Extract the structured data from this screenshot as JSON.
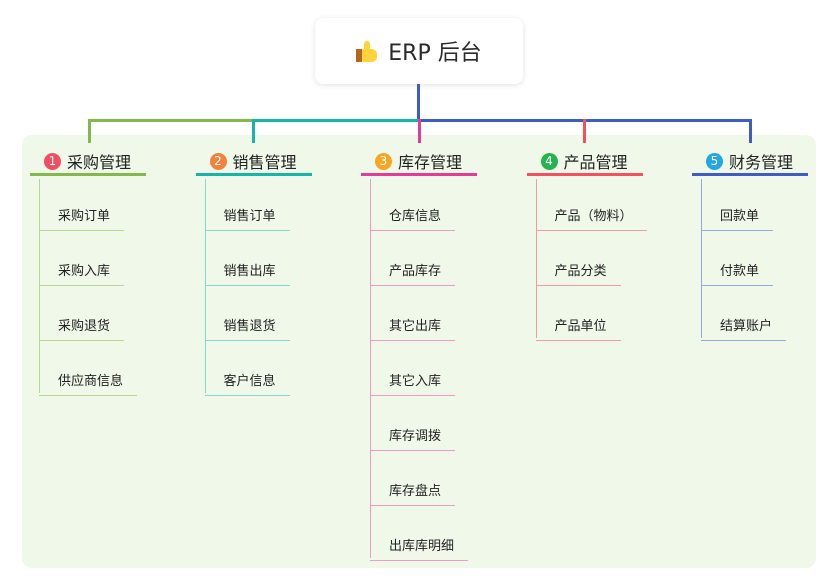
{
  "root": {
    "title": "ERP 后台",
    "icon": "thumbs-up-icon"
  },
  "panel_color": "#eff8e9",
  "branches": [
    {
      "number": "1",
      "title": "采购管理",
      "color": "#84b84c",
      "light": "#b6d891",
      "badge_color": "#f24e62",
      "items": [
        "采购订单",
        "采购入库",
        "采购退货",
        "供应商信息"
      ]
    },
    {
      "number": "2",
      "title": "销售管理",
      "color": "#17b5a8",
      "light": "#86d9cc",
      "badge_color": "#f5823a",
      "items": [
        "销售订单",
        "销售出库",
        "销售退货",
        "客户信息"
      ]
    },
    {
      "number": "3",
      "title": "库存管理",
      "color": "#e23c96",
      "light": "#ee9bc8",
      "badge_color": "#f5a623",
      "items": [
        "仓库信息",
        "产品库存",
        "其它出库",
        "其它入库",
        "库存调拨",
        "库存盘点",
        "出库库明细"
      ]
    },
    {
      "number": "4",
      "title": "产品管理",
      "color": "#f4505f",
      "light": "#f69ca0",
      "badge_color": "#27b350",
      "items": [
        "产品（物料）",
        "产品分类",
        "产品单位"
      ]
    },
    {
      "number": "5",
      "title": "财务管理",
      "color": "#3d5cc4",
      "light": "#93a8dc",
      "badge_color": "#26a6e0",
      "items": [
        "回款单",
        "付款单",
        "结算账户"
      ]
    }
  ]
}
